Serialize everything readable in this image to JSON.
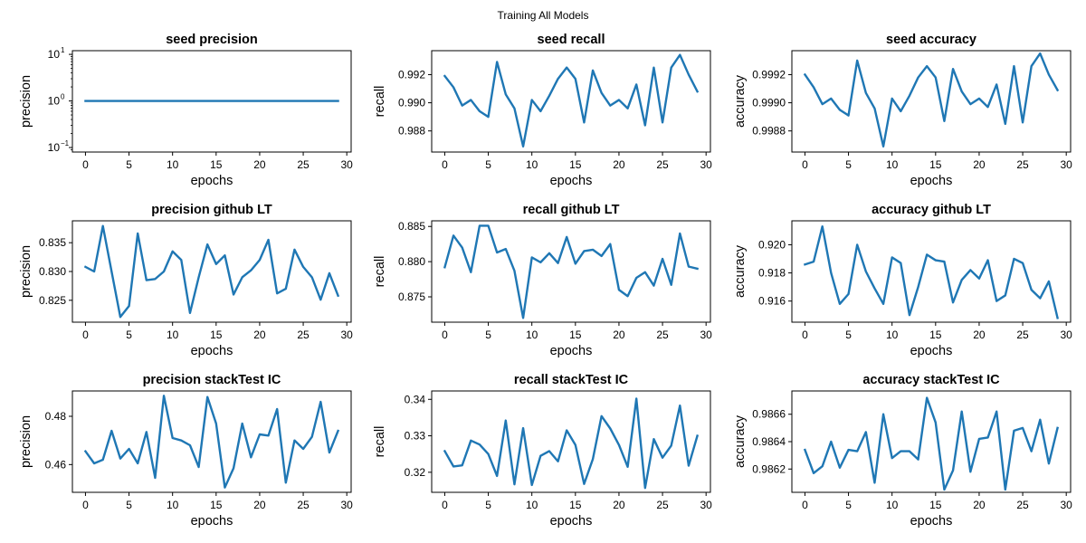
{
  "figure": {
    "suptitle": "Training All Models"
  },
  "colors": {
    "line": "#1f77b4",
    "axes": "#000000",
    "background": "#ffffff"
  },
  "chart_data": [
    {
      "type": "line",
      "title": "seed precision",
      "xlabel": "epochs",
      "ylabel": "precision",
      "yscale": "log",
      "xlim": [
        -1.5,
        30.5
      ],
      "ylim": [
        0.08,
        12
      ],
      "xticks": [
        0,
        5,
        10,
        15,
        20,
        25,
        30
      ],
      "yticks": [
        0.1,
        1,
        10
      ],
      "ytick_labels": [
        "10",
        "10",
        "10"
      ],
      "ytick_exponents": [
        "−1",
        "0",
        "1"
      ],
      "x": [
        0,
        1,
        2,
        3,
        4,
        5,
        6,
        7,
        8,
        9,
        10,
        11,
        12,
        13,
        14,
        15,
        16,
        17,
        18,
        19,
        20,
        21,
        22,
        23,
        24,
        25,
        26,
        27,
        28,
        29
      ],
      "y": [
        1,
        1,
        1,
        1,
        1,
        1,
        1,
        1,
        1,
        1,
        1,
        1,
        1,
        1,
        1,
        1,
        1,
        1,
        1,
        1,
        1,
        1,
        1,
        1,
        1,
        1,
        1,
        1,
        1,
        1
      ]
    },
    {
      "type": "line",
      "title": "seed recall",
      "xlabel": "epochs",
      "ylabel": "recall",
      "xlim": [
        -1.5,
        30.5
      ],
      "ylim": [
        0.9865,
        0.9937
      ],
      "xticks": [
        0,
        5,
        10,
        15,
        20,
        25,
        30
      ],
      "yticks": [
        0.988,
        0.99,
        0.992
      ],
      "ydecimals": 3,
      "x": [
        0,
        1,
        2,
        3,
        4,
        5,
        6,
        7,
        8,
        9,
        10,
        11,
        12,
        13,
        14,
        15,
        16,
        17,
        18,
        19,
        20,
        21,
        22,
        23,
        24,
        25,
        26,
        27,
        28,
        29
      ],
      "y": [
        0.9919,
        0.9911,
        0.9898,
        0.9902,
        0.9894,
        0.989,
        0.9929,
        0.9906,
        0.9896,
        0.9869,
        0.9902,
        0.9894,
        0.9905,
        0.9917,
        0.9925,
        0.9917,
        0.9886,
        0.9923,
        0.9907,
        0.9898,
        0.9902,
        0.9896,
        0.9913,
        0.9884,
        0.9925,
        0.9886,
        0.9925,
        0.9934,
        0.992,
        0.9908
      ]
    },
    {
      "type": "line",
      "title": "seed accuracy",
      "xlabel": "epochs",
      "ylabel": "accuracy",
      "xlim": [
        -1.5,
        30.5
      ],
      "ylim": [
        0.99865,
        0.99937
      ],
      "xticks": [
        0,
        5,
        10,
        15,
        20,
        25,
        30
      ],
      "yticks": [
        0.9988,
        0.999,
        0.9992
      ],
      "ydecimals": 4,
      "x": [
        0,
        1,
        2,
        3,
        4,
        5,
        6,
        7,
        8,
        9,
        10,
        11,
        12,
        13,
        14,
        15,
        16,
        17,
        18,
        19,
        20,
        21,
        22,
        23,
        24,
        25,
        26,
        27,
        28,
        29
      ],
      "y": [
        0.9992,
        0.99911,
        0.99899,
        0.99903,
        0.99895,
        0.99891,
        0.9993,
        0.99907,
        0.99896,
        0.99869,
        0.99903,
        0.99894,
        0.99905,
        0.99918,
        0.99926,
        0.99918,
        0.99887,
        0.99924,
        0.99908,
        0.99899,
        0.99903,
        0.99897,
        0.99913,
        0.99885,
        0.99926,
        0.99886,
        0.99926,
        0.99935,
        0.9992,
        0.99909
      ]
    },
    {
      "type": "line",
      "title": "precision github LT",
      "xlabel": "epochs",
      "ylabel": "precision",
      "xlim": [
        -1.5,
        30.5
      ],
      "ylim": [
        0.8212,
        0.8388
      ],
      "xticks": [
        0,
        5,
        10,
        15,
        20,
        25,
        30
      ],
      "yticks": [
        0.825,
        0.83,
        0.835
      ],
      "ydecimals": 3,
      "x": [
        0,
        1,
        2,
        3,
        4,
        5,
        6,
        7,
        8,
        9,
        10,
        11,
        12,
        13,
        14,
        15,
        16,
        17,
        18,
        19,
        20,
        21,
        22,
        23,
        24,
        25,
        26,
        27,
        28,
        29
      ],
      "y": [
        0.8308,
        0.83,
        0.8379,
        0.83,
        0.8221,
        0.824,
        0.8366,
        0.8285,
        0.8287,
        0.83,
        0.8335,
        0.832,
        0.8228,
        0.829,
        0.8347,
        0.8313,
        0.8328,
        0.826,
        0.829,
        0.8302,
        0.832,
        0.8355,
        0.8262,
        0.827,
        0.8338,
        0.8308,
        0.829,
        0.8251,
        0.8297,
        0.8258
      ]
    },
    {
      "type": "line",
      "title": "recall github LT",
      "xlabel": "epochs",
      "ylabel": "recall",
      "xlim": [
        -1.5,
        30.5
      ],
      "ylim": [
        0.8714,
        0.8858
      ],
      "xticks": [
        0,
        5,
        10,
        15,
        20,
        25,
        30
      ],
      "yticks": [
        0.875,
        0.88,
        0.885
      ],
      "ydecimals": 3,
      "x": [
        0,
        1,
        2,
        3,
        4,
        5,
        6,
        7,
        8,
        9,
        10,
        11,
        12,
        13,
        14,
        15,
        16,
        17,
        18,
        19,
        20,
        21,
        22,
        23,
        24,
        25,
        26,
        27,
        28,
        29
      ],
      "y": [
        0.8792,
        0.8837,
        0.882,
        0.8785,
        0.8851,
        0.8851,
        0.8813,
        0.8818,
        0.8787,
        0.872,
        0.8806,
        0.8799,
        0.8812,
        0.8798,
        0.8835,
        0.8797,
        0.8815,
        0.8817,
        0.8808,
        0.8825,
        0.876,
        0.8751,
        0.8777,
        0.8785,
        0.8766,
        0.8804,
        0.8767,
        0.884,
        0.8793,
        0.879
      ]
    },
    {
      "type": "line",
      "title": "accuracy github LT",
      "xlabel": "epochs",
      "ylabel": "accuracy",
      "xlim": [
        -1.5,
        30.5
      ],
      "ylim": [
        0.9145,
        0.9217
      ],
      "xticks": [
        0,
        5,
        10,
        15,
        20,
        25,
        30
      ],
      "yticks": [
        0.916,
        0.918,
        0.92
      ],
      "ydecimals": 3,
      "x": [
        0,
        1,
        2,
        3,
        4,
        5,
        6,
        7,
        8,
        9,
        10,
        11,
        12,
        13,
        14,
        15,
        16,
        17,
        18,
        19,
        20,
        21,
        22,
        23,
        24,
        25,
        26,
        27,
        28,
        29
      ],
      "y": [
        0.9186,
        0.9188,
        0.9213,
        0.918,
        0.9158,
        0.9165,
        0.92,
        0.9181,
        0.9169,
        0.9158,
        0.9191,
        0.9187,
        0.915,
        0.917,
        0.9193,
        0.9189,
        0.9188,
        0.9159,
        0.9175,
        0.9182,
        0.9176,
        0.9189,
        0.916,
        0.9164,
        0.919,
        0.9187,
        0.9168,
        0.9162,
        0.9174,
        0.9148
      ]
    },
    {
      "type": "line",
      "title": "precision stackTest IC",
      "xlabel": "epochs",
      "ylabel": "precision",
      "xlim": [
        -1.5,
        30.5
      ],
      "ylim": [
        0.4485,
        0.4905
      ],
      "xticks": [
        0,
        5,
        10,
        15,
        20,
        25,
        30
      ],
      "yticks": [
        0.46,
        0.48
      ],
      "ydecimals": 2,
      "x": [
        0,
        1,
        2,
        3,
        4,
        5,
        6,
        7,
        8,
        9,
        10,
        11,
        12,
        13,
        14,
        15,
        16,
        17,
        18,
        19,
        20,
        21,
        22,
        23,
        24,
        25,
        26,
        27,
        28,
        29
      ],
      "y": [
        0.4655,
        0.4605,
        0.462,
        0.474,
        0.4625,
        0.4665,
        0.4605,
        0.4735,
        0.4545,
        0.4885,
        0.471,
        0.47,
        0.468,
        0.459,
        0.488,
        0.477,
        0.4505,
        0.4585,
        0.477,
        0.463,
        0.4725,
        0.472,
        0.483,
        0.4525,
        0.47,
        0.4665,
        0.4715,
        0.486,
        0.465,
        0.474
      ]
    },
    {
      "type": "line",
      "title": "recall stackTest IC",
      "xlabel": "epochs",
      "ylabel": "recall",
      "xlim": [
        -1.5,
        30.5
      ],
      "ylim": [
        0.3145,
        0.3423
      ],
      "xticks": [
        0,
        5,
        10,
        15,
        20,
        25,
        30
      ],
      "yticks": [
        0.32,
        0.33,
        0.34
      ],
      "ydecimals": 2,
      "x": [
        0,
        1,
        2,
        3,
        4,
        5,
        6,
        7,
        8,
        9,
        10,
        11,
        12,
        13,
        14,
        15,
        16,
        17,
        18,
        19,
        20,
        21,
        22,
        23,
        24,
        25,
        26,
        27,
        28,
        29
      ],
      "y": [
        0.3258,
        0.3216,
        0.3219,
        0.3287,
        0.3276,
        0.325,
        0.319,
        0.3342,
        0.3167,
        0.3321,
        0.3165,
        0.3245,
        0.3258,
        0.323,
        0.3315,
        0.3275,
        0.3168,
        0.3236,
        0.3354,
        0.332,
        0.3275,
        0.3215,
        0.3402,
        0.3157,
        0.3291,
        0.324,
        0.3273,
        0.3383,
        0.3218,
        0.33
      ]
    },
    {
      "type": "line",
      "title": "accuracy stackTest IC",
      "xlabel": "epochs",
      "ylabel": "accuracy",
      "xlim": [
        -1.5,
        30.5
      ],
      "ylim": [
        0.98603,
        0.98677
      ],
      "xticks": [
        0,
        5,
        10,
        15,
        20,
        25,
        30
      ],
      "yticks": [
        0.9862,
        0.9864,
        0.9866
      ],
      "ydecimals": 4,
      "x": [
        0,
        1,
        2,
        3,
        4,
        5,
        6,
        7,
        8,
        9,
        10,
        11,
        12,
        13,
        14,
        15,
        16,
        17,
        18,
        19,
        20,
        21,
        22,
        23,
        24,
        25,
        26,
        27,
        28,
        29
      ],
      "y": [
        0.98634,
        0.98617,
        0.98622,
        0.9864,
        0.98621,
        0.98634,
        0.98633,
        0.98647,
        0.9861,
        0.9866,
        0.98628,
        0.98633,
        0.98633,
        0.98627,
        0.98672,
        0.98654,
        0.98605,
        0.98619,
        0.98662,
        0.98618,
        0.98642,
        0.98643,
        0.98662,
        0.98605,
        0.98648,
        0.9865,
        0.98633,
        0.98656,
        0.98624,
        0.9865
      ]
    }
  ]
}
